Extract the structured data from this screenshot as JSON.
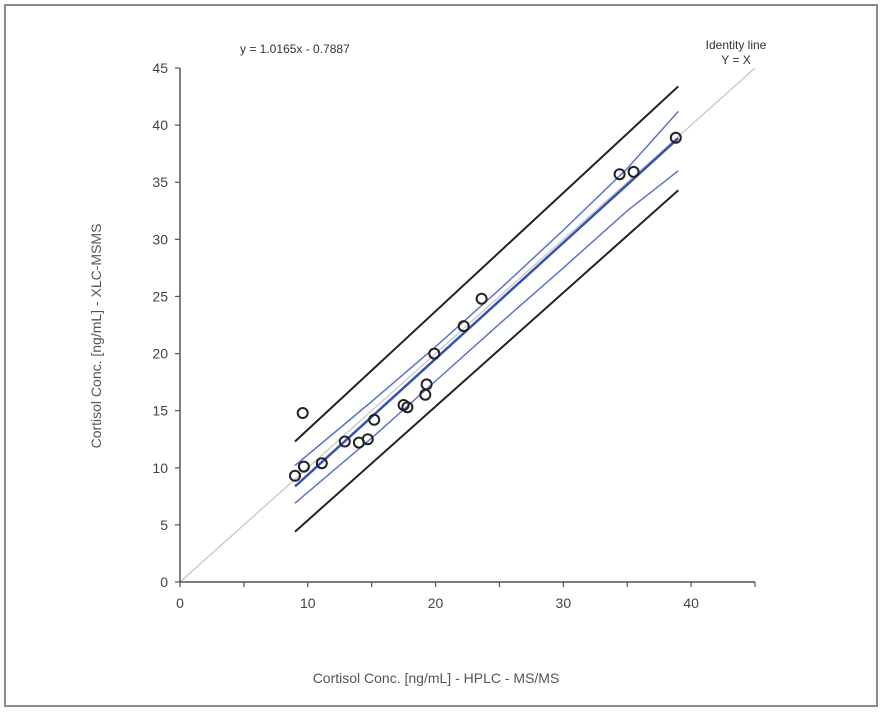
{
  "chart_data": {
    "type": "scatter",
    "title": "",
    "xlabel": "Cortisol Conc. [ng/mL] - HPLC - MS/MS",
    "ylabel": "Cortisol Conc. [ng/mL] - XLC-MSMS",
    "xlim": [
      0,
      45
    ],
    "ylim": [
      0,
      45
    ],
    "xticks": [
      0,
      10,
      20,
      30,
      40
    ],
    "yticks": [
      0,
      5,
      10,
      15,
      20,
      25,
      30,
      35,
      40,
      45
    ],
    "grid": false,
    "equation": "y = 1.0165x - 0.7887",
    "identity_label_line1": "Identity line",
    "identity_label_line2": "Y = X",
    "points": [
      {
        "x": 9.0,
        "y": 9.3
      },
      {
        "x": 9.7,
        "y": 10.1
      },
      {
        "x": 9.6,
        "y": 14.8
      },
      {
        "x": 11.1,
        "y": 10.4
      },
      {
        "x": 12.9,
        "y": 12.3
      },
      {
        "x": 14.0,
        "y": 12.2
      },
      {
        "x": 14.7,
        "y": 12.5
      },
      {
        "x": 15.2,
        "y": 14.2
      },
      {
        "x": 17.5,
        "y": 15.5
      },
      {
        "x": 17.8,
        "y": 15.3
      },
      {
        "x": 19.2,
        "y": 16.4
      },
      {
        "x": 19.3,
        "y": 17.3
      },
      {
        "x": 19.9,
        "y": 20.0
      },
      {
        "x": 22.2,
        "y": 22.4
      },
      {
        "x": 23.6,
        "y": 24.8
      },
      {
        "x": 34.4,
        "y": 35.7
      },
      {
        "x": 35.5,
        "y": 35.9
      },
      {
        "x": 38.8,
        "y": 38.9
      }
    ],
    "identity_line": {
      "x": [
        0,
        45
      ],
      "y": [
        0,
        45
      ]
    },
    "regression_line": {
      "x": [
        9,
        39
      ],
      "y": [
        8.36,
        38.85
      ]
    },
    "confidence_band_upper": {
      "x": [
        9,
        15,
        20,
        25,
        30,
        35,
        39
      ],
      "y": [
        10.2,
        15.8,
        20.6,
        25.6,
        30.8,
        36.2,
        41.2
      ]
    },
    "confidence_band_lower": {
      "x": [
        9,
        15,
        20,
        25,
        30,
        35,
        39
      ],
      "y": [
        6.9,
        12.6,
        17.6,
        22.6,
        27.5,
        32.5,
        36.0
      ]
    },
    "prediction_band_upper": {
      "x": [
        9,
        39
      ],
      "y": [
        12.3,
        43.4
      ]
    },
    "prediction_band_lower": {
      "x": [
        9,
        39
      ],
      "y": [
        4.4,
        34.3
      ]
    },
    "colors": {
      "identity": "#c4c4c4",
      "regression": "#3552b0",
      "confidence": "#5a74c8",
      "prediction": "#222222",
      "points": "#222222",
      "axis": "#555555"
    }
  }
}
